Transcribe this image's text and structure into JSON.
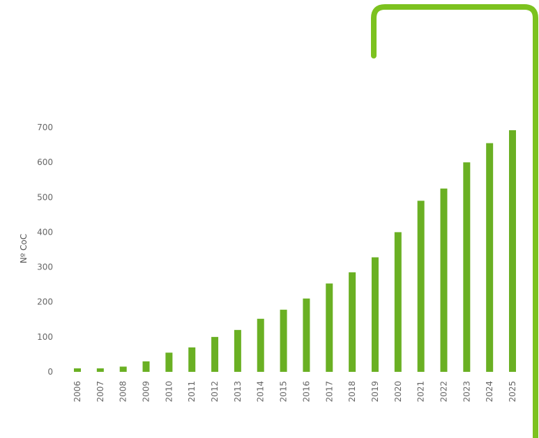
{
  "chart_data": {
    "type": "bar",
    "ylabel": "Nº CoC",
    "categories": [
      "2006",
      "2007",
      "2008",
      "2009",
      "2010",
      "2011",
      "2012",
      "2013",
      "2014",
      "2015",
      "2016",
      "2017",
      "2018",
      "2019",
      "2020",
      "2021",
      "2022",
      "2023",
      "2024",
      "2025"
    ],
    "values": [
      10,
      10,
      15,
      30,
      55,
      70,
      100,
      120,
      152,
      178,
      210,
      253,
      285,
      328,
      400,
      490,
      525,
      600,
      655,
      692
    ],
    "ylim": [
      0,
      700
    ],
    "yticks": [
      0,
      100,
      200,
      300,
      400,
      500,
      600,
      700
    ],
    "grid": false,
    "bar_color": "#6ab023",
    "bracket_color": "#7cc21f"
  }
}
